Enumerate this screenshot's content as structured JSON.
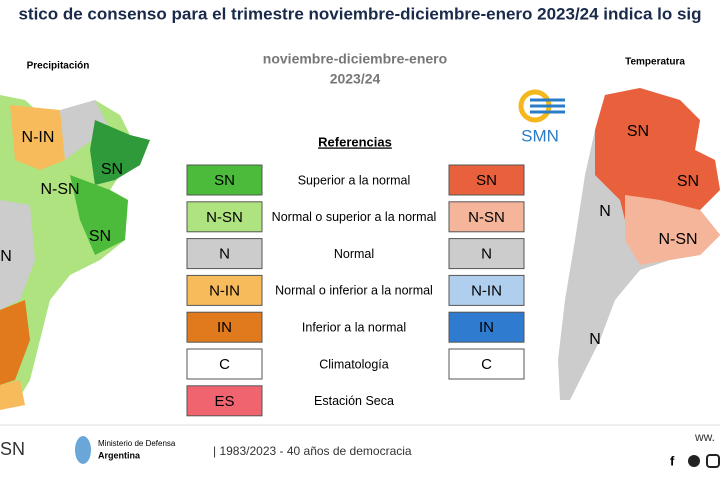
{
  "header": {
    "title": "stico de consenso para el trimestre noviembre-diciembre-enero 2023/24 indica lo sig"
  },
  "maps": {
    "left": {
      "title": "Precipitación",
      "labels": [
        "N-IN",
        "SN",
        "N-SN",
        "SN",
        "N"
      ]
    },
    "right": {
      "title": "Temperatura",
      "labels": [
        "SN",
        "SN",
        "N",
        "N-SN",
        "N"
      ]
    }
  },
  "period": {
    "line1": "noviembre-diciembre-enero",
    "line2": "2023/24"
  },
  "logo": "SMN",
  "legend": {
    "title": "Referencias",
    "rows": [
      {
        "left": {
          "code": "SN",
          "color": "#4cbb3c"
        },
        "description": "Superior a la normal",
        "right": {
          "code": "SN",
          "color": "#e8613c"
        }
      },
      {
        "left": {
          "code": "N-SN",
          "color": "#aee37f"
        },
        "description": "Normal o superior a la normal",
        "right": {
          "code": "N-SN",
          "color": "#f5b59b"
        }
      },
      {
        "left": {
          "code": "N",
          "color": "#cccccc"
        },
        "description": "Normal",
        "right": {
          "code": "N",
          "color": "#cccccc"
        }
      },
      {
        "left": {
          "code": "N-IN",
          "color": "#f8bb5c"
        },
        "description": "Normal o inferior a la normal",
        "right": {
          "code": "N-IN",
          "color": "#b0cfee"
        }
      },
      {
        "left": {
          "code": "IN",
          "color": "#e07a1c"
        },
        "description": "Inferior a la normal",
        "right": {
          "code": "IN",
          "color": "#2f7bd0"
        }
      },
      {
        "left": {
          "code": "C",
          "color": "#ffffff"
        },
        "description": "Climatología",
        "right": {
          "code": "C",
          "color": "#ffffff"
        }
      },
      {
        "left": {
          "code": "ES",
          "color": "#f06470"
        },
        "description": "Estación Seca"
      }
    ]
  },
  "footer": {
    "logo": "SN",
    "ministry": "Ministerio de Defensa",
    "country": "Argentina",
    "slogan": "| 1983/2023 - 40 años de democracia",
    "web": "ww."
  }
}
